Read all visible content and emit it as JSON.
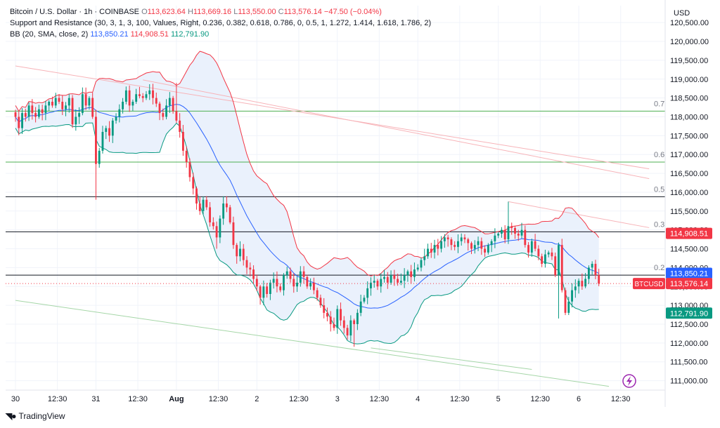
{
  "header": {
    "symbol": "Bitcoin / U.S. Dollar · 1h · COINBASE",
    "o_label": "O",
    "o_val": "113,623.64",
    "h_label": "H",
    "h_val": "113,669.16",
    "l_label": "L",
    "l_val": "113,550.00",
    "c_label": "C",
    "c_val": "113,576.14",
    "change": "−47.50 (−0.04%)",
    "indicator1": "Support and Resistance (30, 3, 1, 3, 100, Values, Right, 0.236, 0.382, 0.618, 0.786, 0, 0.5, 1, 1.272, 1.414, 1.618, 1.786, 2)",
    "indicator2_name": "BB (20, SMA, close, 2)",
    "bb_basis": "113,850.21",
    "bb_upper": "114,908.51",
    "bb_lower": "112,791.90"
  },
  "currency": "USD",
  "brand": "TradingView",
  "colors": {
    "up": "#089981",
    "down": "#f23645",
    "basis": "#2962ff",
    "upper": "#f23645",
    "lower": "#089981",
    "band_fill": "#eaf1fc",
    "level": "#4caf50"
  },
  "chart_data": {
    "type": "candlestick",
    "title": "Bitcoin / U.S. Dollar · 1h · COINBASE",
    "ylim": [
      110750,
      120950
    ],
    "y_ticks": [
      111000,
      111500,
      112000,
      112500,
      113000,
      113500,
      114000,
      114500,
      115000,
      115500,
      116000,
      116500,
      117000,
      117500,
      118000,
      118500,
      119000,
      119500,
      120000,
      120500
    ],
    "y_tick_labels": [
      "111,000.00",
      "111,500.00",
      "112,000.00",
      "112,500.00",
      "113,000.00",
      "113,500.00",
      "114,000.00",
      "114,500.00",
      "115,000.00",
      "115,500.00",
      "116,000.00",
      "116,500.00",
      "117,000.00",
      "117,500.00",
      "118,000.00",
      "118,500.00",
      "119,000.00",
      "119,500.00",
      "120,000.00",
      "120,500.00"
    ],
    "x_ticks": [
      {
        "label": "30",
        "t": 0
      },
      {
        "label": "12:30",
        "t": 12.5
      },
      {
        "label": "31",
        "t": 24
      },
      {
        "label": "12:30",
        "t": 36.5
      },
      {
        "label": "Aug",
        "t": 48
      },
      {
        "label": "12:30",
        "t": 60.5
      },
      {
        "label": "2",
        "t": 72
      },
      {
        "label": "12:30",
        "t": 84.5
      },
      {
        "label": "3",
        "t": 96
      },
      {
        "label": "12:30",
        "t": 108.5
      },
      {
        "label": "4",
        "t": 120
      },
      {
        "label": "12:30",
        "t": 132.5
      },
      {
        "label": "5",
        "t": 144
      },
      {
        "label": "12:30",
        "t": 156.5
      },
      {
        "label": "6",
        "t": 168
      },
      {
        "label": "12:30",
        "t": 180.5
      }
    ],
    "levels": [
      {
        "label": "0.7",
        "value": 118150,
        "color": "#4caf50"
      },
      {
        "label": "0.6",
        "value": 116800,
        "color": "#4caf50"
      },
      {
        "label": "0.5",
        "value": 115880,
        "color": "#131722"
      },
      {
        "label": "0.3",
        "value": 114950,
        "color": "#131722"
      },
      {
        "label": "0.2",
        "value": 113800,
        "color": "#131722"
      }
    ],
    "trendlines": [
      {
        "t1": 0,
        "v1": 119350,
        "t2": 189,
        "v2": 116620,
        "color": "#f7b3b8"
      },
      {
        "t1": 38,
        "v1": 118980,
        "t2": 189,
        "v2": 116360,
        "color": "#f7b3b8"
      },
      {
        "t1": 147,
        "v1": 115750,
        "t2": 189,
        "v2": 115060,
        "color": "#f7b3b8"
      },
      {
        "t1": 0,
        "v1": 113130,
        "t2": 177,
        "v2": 110850,
        "color": "#a5d6a7"
      },
      {
        "t1": 106,
        "v1": 111870,
        "t2": 154,
        "v2": 111300,
        "color": "#a5d6a7"
      }
    ],
    "last_price": 113576.14,
    "price_labels": [
      {
        "text": "114,908.51",
        "value": 114908.51,
        "color": "#f23645"
      },
      {
        "text": "113,850.21",
        "value": 113850.21,
        "color": "#2962ff"
      },
      {
        "text": "113,576.14",
        "value": 113576.14,
        "color": "#f23645",
        "ticker": "BTCUSD"
      },
      {
        "text": "112,791.90",
        "value": 112791.9,
        "color": "#089981"
      }
    ],
    "closes": [
      118000,
      117700,
      118100,
      118000,
      118300,
      118100,
      118000,
      118200,
      118100,
      118300,
      118400,
      118300,
      118500,
      118400,
      118200,
      118300,
      118500,
      117800,
      118000,
      118100,
      118600,
      118300,
      118500,
      118000,
      116750,
      117100,
      117600,
      117700,
      117500,
      117900,
      118000,
      118200,
      118400,
      118700,
      118300,
      118400,
      118600,
      118550,
      118500,
      118600,
      118700,
      118500,
      118350,
      118100,
      118000,
      118300,
      118500,
      118150,
      117900,
      117600,
      117100,
      116800,
      116400,
      116100,
      115700,
      115500,
      115800,
      115600,
      115200,
      115100,
      114800,
      115300,
      115700,
      115600,
      115200,
      114600,
      114300,
      114500,
      114200,
      114000,
      113950,
      113700,
      113500,
      113200,
      113500,
      113300,
      113600,
      113700,
      113500,
      113400,
      113800,
      113900,
      113700,
      113500,
      113600,
      113900,
      113750,
      113500,
      113600,
      113400,
      113200,
      113000,
      112800,
      112700,
      112500,
      112400,
      112900,
      112600,
      112400,
      112200,
      112600,
      112500,
      112800,
      113100,
      113200,
      113450,
      113600,
      113650,
      113500,
      113700,
      113750,
      113600,
      113800,
      113700,
      113600,
      113650,
      113800,
      113900,
      113750,
      113950,
      114000,
      114200,
      114300,
      114500,
      114400,
      114600,
      114500,
      114700,
      114800,
      114750,
      114600,
      114550,
      114700,
      114800,
      114750,
      114650,
      114500,
      114600,
      114700,
      114500,
      114400,
      114600,
      114700,
      114850,
      114900,
      115000,
      114750,
      115100,
      115050,
      114900,
      114850,
      115000,
      114600,
      114400,
      114700,
      114500,
      114300,
      114100,
      114350,
      114400,
      114300,
      113800,
      114600,
      113400,
      112800,
      113100,
      113400,
      113500,
      113650,
      113500,
      113700,
      114000,
      114100,
      113800,
      113576.14
    ]
  }
}
